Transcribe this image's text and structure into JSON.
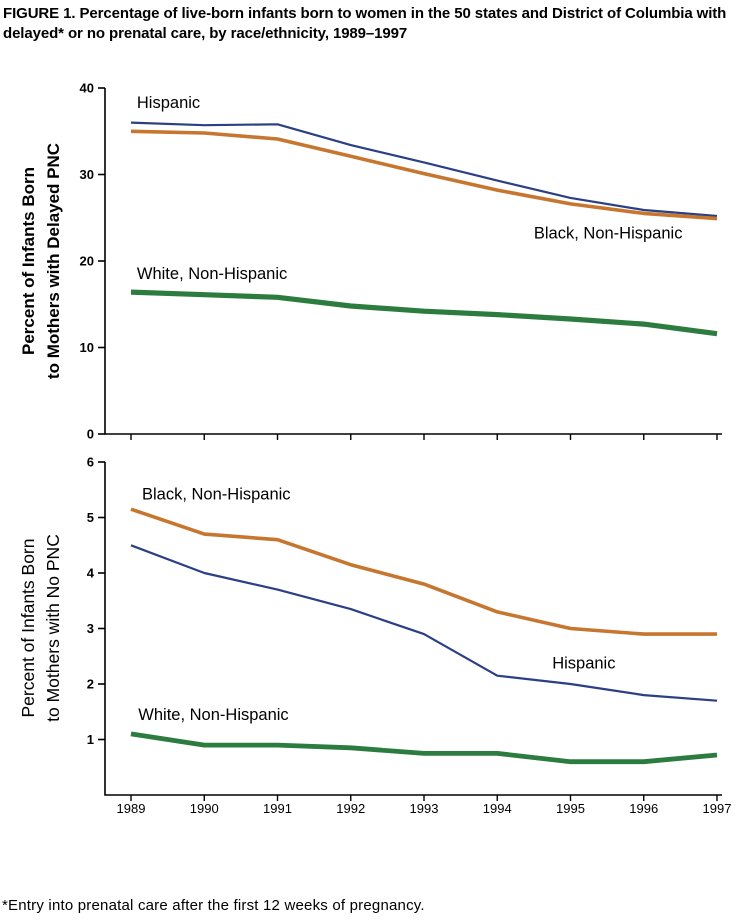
{
  "title": "FIGURE 1. Percentage of live-born infants born to women in the 50 states and District of Columbia with delayed* or no prenatal care, by race/ethnicity, 1989–1997",
  "footnote": "*Entry into prenatal care after the first 12 weeks of pregnancy.",
  "chart_data": [
    {
      "type": "line",
      "title": "",
      "xlabel": "",
      "ylabel": "Percent of Infants Born to Mothers with Delayed PNC",
      "ylabel_lines": [
        "Percent of Infants Born",
        "to Mothers with Delayed PNC"
      ],
      "x": [
        1989,
        1990,
        1991,
        1992,
        1993,
        1994,
        1995,
        1996,
        1997
      ],
      "ylim": [
        0,
        40
      ],
      "yticks": [
        0,
        10,
        20,
        30,
        40
      ],
      "grid": false,
      "legend": "in-plot labels",
      "series": [
        {
          "name": "Hispanic",
          "color": "#2b3f85",
          "width": 2.2,
          "values": [
            36.0,
            35.7,
            35.8,
            33.4,
            31.4,
            29.3,
            27.3,
            25.9,
            25.2
          ],
          "label": {
            "text": "Hispanic",
            "x": 1989.08,
            "y": 37.7
          }
        },
        {
          "name": "Black, Non-Hispanic",
          "color": "#c6762e",
          "width": 3.6,
          "values": [
            35.0,
            34.8,
            34.1,
            32.1,
            30.1,
            28.2,
            26.6,
            25.5,
            24.9
          ],
          "label": {
            "text": "Black, Non-Hispanic",
            "x": 1994.5,
            "y": 22.6
          }
        },
        {
          "name": "White, Non-Hispanic",
          "color": "#2c7c3f",
          "width": 5.2,
          "values": [
            16.4,
            16.1,
            15.8,
            14.8,
            14.2,
            13.8,
            13.3,
            12.7,
            11.6
          ],
          "label": {
            "text": "White, Non-Hispanic",
            "x": 1989.08,
            "y": 17.9
          }
        }
      ]
    },
    {
      "type": "line",
      "title": "",
      "xlabel": "",
      "ylabel": "Percent of Infants Born to Mothers with No PNC",
      "ylabel_lines": [
        "Percent of Infants Born",
        "to Mothers with No PNC"
      ],
      "x": [
        1989,
        1990,
        1991,
        1992,
        1993,
        1994,
        1995,
        1996,
        1997
      ],
      "xticklabels": [
        "1989",
        "1990",
        "1991",
        "1992",
        "1993",
        "1994",
        "1995",
        "1996",
        "1997"
      ],
      "ylim": [
        0,
        6
      ],
      "yticks": [
        1,
        2,
        3,
        4,
        5,
        6
      ],
      "grid": false,
      "legend": "in-plot labels",
      "series": [
        {
          "name": "Black, Non-Hispanic",
          "color": "#c6762e",
          "width": 3.6,
          "values": [
            5.15,
            4.7,
            4.6,
            4.15,
            3.8,
            3.3,
            3.0,
            2.9,
            2.9
          ],
          "label": {
            "text": "Black, Non-Hispanic",
            "x": 1989.15,
            "y": 5.32
          }
        },
        {
          "name": "Hispanic",
          "color": "#2b3f85",
          "width": 2.2,
          "values": [
            4.5,
            4.0,
            3.7,
            3.35,
            2.9,
            2.15,
            2.0,
            1.8,
            1.7
          ],
          "label": {
            "text": "Hispanic",
            "x": 1994.75,
            "y": 2.28
          }
        },
        {
          "name": "White, Non-Hispanic",
          "color": "#2c7c3f",
          "width": 4.8,
          "values": [
            1.1,
            0.9,
            0.9,
            0.85,
            0.75,
            0.75,
            0.6,
            0.6,
            0.72
          ],
          "label": {
            "text": "White, Non-Hispanic",
            "x": 1989.1,
            "y": 1.35
          }
        }
      ]
    }
  ]
}
